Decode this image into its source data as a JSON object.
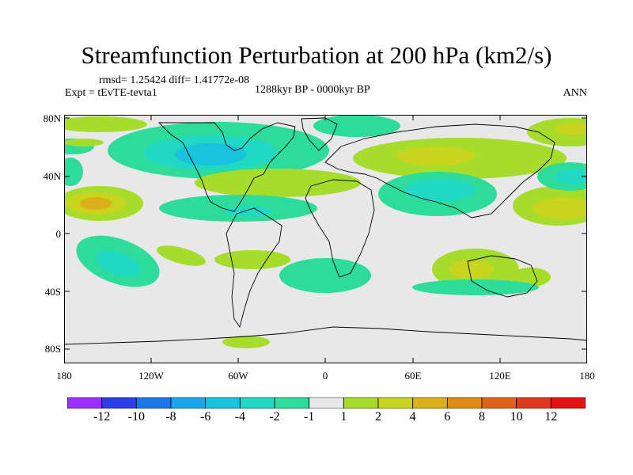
{
  "title": "Streamfunction Perturbation at 200 hPa (km2/s)",
  "stats": "rmsd= 1.25424 diff= 1.41772e-08",
  "experiment": "Expt = tEvTE-tevta1",
  "period": "1288kyr BP - 0000kyr BP",
  "season": "ANN",
  "lat_labels": [
    "80N",
    "40N",
    "0",
    "40S",
    "80S"
  ],
  "lon_labels": [
    "180",
    "120W",
    "60W",
    "0",
    "60E",
    "120E",
    "180"
  ],
  "colorbar": {
    "labels": [
      "-12",
      "-10",
      "-8",
      "-6",
      "-4",
      "-2",
      "-1",
      "1",
      "2",
      "4",
      "6",
      "8",
      "10",
      "12"
    ],
    "colors": [
      "#9b30ff",
      "#2b3ee8",
      "#1a78e8",
      "#1aa6ea",
      "#18c3de",
      "#20d8c4",
      "#2edc9a",
      "#e8e8e8",
      "#a6dd2c",
      "#c8d41e",
      "#dcb018",
      "#e08a16",
      "#e0621a",
      "#e03a1e",
      "#e01414"
    ]
  },
  "colors": {
    "background": "#e8e8e8",
    "neg1": "#2edc9a",
    "neg2": "#20d8c4",
    "neg3": "#18c3de",
    "pos1": "#a6dd2c",
    "pos2": "#c8d41e",
    "pos3": "#dcb018"
  }
}
